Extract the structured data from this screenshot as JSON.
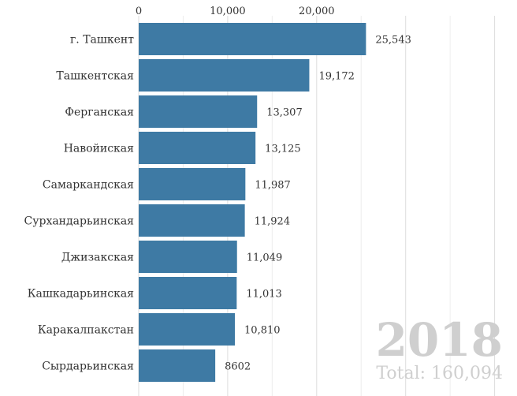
{
  "chart_data": {
    "type": "bar",
    "orientation": "horizontal",
    "categories": [
      "г. Ташкент",
      "Ташкентская",
      "Ферганская",
      "Навойиская",
      "Самаркандская",
      "Сурхандарьинская",
      "Джизакская",
      "Кашкадарьинская",
      "Каракалпакстан",
      "Сырдарьинская"
    ],
    "values": [
      25543,
      19172,
      13307,
      13125,
      11987,
      11924,
      11049,
      11013,
      10810,
      8602
    ],
    "value_labels": [
      "25,543",
      "19,172",
      "13,307",
      "13,125",
      "11,987",
      "11,924",
      "11,049",
      "11,013",
      "10,810",
      "8602"
    ],
    "x_ticks": [
      0,
      10000,
      20000
    ],
    "x_tick_labels": [
      "0",
      "10,000",
      "20,000"
    ],
    "xlim": [
      0,
      40000
    ],
    "grid": true,
    "title": "",
    "xlabel": "",
    "ylabel": "",
    "bar_color": "#3e7aa4",
    "year": "2018",
    "total_label": "Total: 160,094"
  }
}
